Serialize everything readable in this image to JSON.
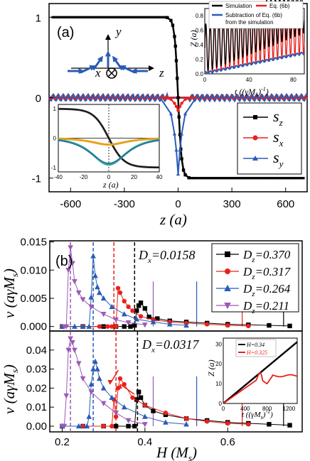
{
  "chart_data": [
    {
      "id": "a",
      "panel_label": "(a)",
      "type": "line",
      "xlabel": "z (a)",
      "ylabel": "",
      "xlim": [
        -720,
        720
      ],
      "ylim": [
        -1.17,
        1.17
      ],
      "xticks": [
        "-600",
        "-300",
        "0",
        "300",
        "600"
      ],
      "yticks": [
        "1",
        "0",
        "-1"
      ],
      "series": [
        {
          "name": "s_z",
          "color": "#000000",
          "marker": "square",
          "x": [
            -700,
            -600,
            -500,
            -400,
            -300,
            -200,
            -100,
            -60,
            -40,
            -30,
            -20,
            -15,
            -10,
            -5,
            0,
            5,
            10,
            15,
            20,
            30,
            40,
            60,
            100,
            200,
            300,
            400,
            500,
            600,
            700
          ],
          "y": [
            1,
            1,
            1,
            1,
            1,
            1,
            0.999,
            0.995,
            0.96,
            0.9,
            0.76,
            0.64,
            0.46,
            0.24,
            0,
            -0.24,
            -0.46,
            -0.64,
            -0.76,
            -0.9,
            -0.96,
            -0.995,
            -0.999,
            -1,
            -1,
            -1,
            -1,
            -1,
            -1
          ]
        },
        {
          "name": "s_x",
          "color": "#e8211c",
          "marker": "circle",
          "x": [
            -700,
            -100,
            -40,
            -20,
            -10,
            0,
            10,
            20,
            40,
            100,
            700
          ],
          "y": [
            0,
            0,
            -0.02,
            -0.07,
            -0.11,
            -0.16,
            -0.11,
            -0.07,
            -0.02,
            0,
            0
          ]
        },
        {
          "name": "s_y",
          "color": "#2a5cb6",
          "marker": "triangle",
          "x": [
            -700,
            -100,
            -40,
            -20,
            -10,
            0,
            10,
            20,
            40,
            100,
            700
          ],
          "y": [
            0,
            0,
            -0.2,
            -0.45,
            -0.65,
            -0.95,
            -0.65,
            -0.45,
            -0.2,
            0,
            0
          ]
        }
      ],
      "inset_profile": {
        "xlabel": "z (a)",
        "xticks": [
          "-40",
          "-20",
          "0",
          "20",
          "40"
        ],
        "yticks": [
          "1",
          "0",
          "-1"
        ],
        "xlim": [
          -40,
          40
        ],
        "ylim": [
          -1.15,
          1.15
        ]
      },
      "inset_time": {
        "xlabel": "t ((γM_S)⁻¹)",
        "ylabel": "Z (a)",
        "xticks": [
          "0",
          "40",
          "80"
        ],
        "yticks": [
          "0.0",
          "0.2",
          "0.4",
          "0.6",
          "0.8"
        ],
        "xlim": [
          0,
          90
        ],
        "ylim": [
          0,
          0.9
        ],
        "legend": [
          "Simulation",
          "Eq. (6b)",
          "Subtraction of Eq. (6b) from the simulation"
        ]
      },
      "axes_sketch": {
        "y_label": "y",
        "x_label": "x",
        "z_label": "z"
      }
    },
    {
      "id": "b",
      "panel_label": "(b)",
      "type": "line",
      "xlabel": "H (M_s)",
      "ylabel_top": "v (aγM_s)",
      "ylabel_bottom": "v (aγM_s)",
      "xlim": [
        0.17,
        0.78
      ],
      "xticks": [
        "0.2",
        "0.4",
        "0.6"
      ],
      "top": {
        "annotation": "D_x=0.0158",
        "ylim": [
          -0.0008,
          0.0152
        ],
        "yticks": [
          "0.000",
          "0.005",
          "0.010",
          "0.015"
        ],
        "series": [
          {
            "name": "D_z=0.370",
            "color": "#000000",
            "marker": "square",
            "x": [
              0.2,
              0.25,
              0.3,
              0.33,
              0.35,
              0.365,
              0.375,
              0.38,
              0.385,
              0.39,
              0.4,
              0.41,
              0.43,
              0.46,
              0.5,
              0.55,
              0.6,
              0.65,
              0.7,
              0.75
            ],
            "y": [
              0,
              0,
              0,
              0,
              0,
              0,
              0.0002,
              0.0028,
              0.0037,
              0.0042,
              0.0032,
              0.0017,
              0.0014,
              0.001,
              0.0008,
              0.0006,
              0.0004,
              0.0003,
              0.0002,
              0.0001
            ]
          },
          {
            "name": "D_z=0.317",
            "color": "#e8211c",
            "marker": "circle",
            "x": [
              0.2,
              0.25,
              0.29,
              0.31,
              0.32,
              0.33,
              0.335,
              0.34,
              0.35,
              0.36,
              0.37,
              0.39,
              0.42,
              0.46,
              0.5,
              0.55,
              0.6,
              0.65
            ],
            "y": [
              0,
              0,
              0,
              0,
              0,
              0,
              0.0068,
              0.006,
              0.0045,
              0.0035,
              0.0028,
              0.0018,
              0.0012,
              0.0008,
              0.0006,
              0.0004,
              0.0002,
              0.0001
            ]
          },
          {
            "name": "D_z=0.264",
            "color": "#2a5cb6",
            "marker": "triangle",
            "x": [
              0.2,
              0.23,
              0.25,
              0.265,
              0.27,
              0.275,
              0.28,
              0.285,
              0.29,
              0.3,
              0.32,
              0.35,
              0.38,
              0.42,
              0.46,
              0.5
            ],
            "y": [
              0,
              0,
              0,
              0,
              0.0052,
              0.0125,
              0.009,
              0.007,
              0.006,
              0.005,
              0.0035,
              0.0022,
              0.0013,
              0.0008,
              0.0004,
              0.0002
            ]
          },
          {
            "name": "D_z=0.211",
            "color": "#9b59b6",
            "marker": "triangle-down",
            "x": [
              0.205,
              0.21,
              0.215,
              0.22,
              0.225,
              0.23,
              0.24,
              0.25,
              0.27,
              0.3,
              0.33,
              0.36,
              0.4
            ],
            "y": [
              0,
              0,
              0.01,
              0.014,
              0.0112,
              0.008,
              0.006,
              0.0048,
              0.0035,
              0.0022,
              0.0012,
              0.0007,
              0.0003
            ]
          }
        ],
        "dashed_lines_x": [
          0.22,
          0.275,
          0.325,
          0.375
        ],
        "solid_lines_x": [
          0.42,
          0.525,
          0.635,
          0.735
        ]
      },
      "bottom": {
        "annotation": "D_x=0.0317",
        "ylim": [
          -0.003,
          0.05
        ],
        "yticks": [
          "0.00",
          "0.01",
          "0.02",
          "0.03",
          "0.04"
        ],
        "series": [
          {
            "name": "D_z=0.370",
            "color": "#000000",
            "marker": "square",
            "x": [
              0.2,
              0.25,
              0.3,
              0.33,
              0.36,
              0.375,
              0.38,
              0.385,
              0.39,
              0.4,
              0.42,
              0.45,
              0.5,
              0.55,
              0.6,
              0.65,
              0.7,
              0.75
            ],
            "y": [
              0,
              0,
              0,
              0,
              0,
              0,
              0.014,
              0.018,
              0.015,
              0.011,
              0.008,
              0.006,
              0.004,
              0.003,
              0.002,
              0.0015,
              0.001,
              0.0005
            ]
          },
          {
            "name": "D_z=0.317",
            "color": "#e8211c",
            "marker": "circle",
            "x": [
              0.2,
              0.25,
              0.3,
              0.32,
              0.325,
              0.33,
              0.335,
              0.34,
              0.35,
              0.37,
              0.4,
              0.45,
              0.5,
              0.55,
              0.6,
              0.65
            ],
            "y": [
              0,
              0,
              0,
              0,
              0.014,
              0.005,
              0.02,
              0.025,
              0.022,
              0.015,
              0.011,
              0.007,
              0.004,
              0.0025,
              0.0015,
              0.001
            ]
          },
          {
            "name": "D_z=0.264",
            "color": "#2a5cb6",
            "marker": "triangle",
            "x": [
              0.2,
              0.24,
              0.26,
              0.265,
              0.27,
              0.275,
              0.28,
              0.285,
              0.29,
              0.3,
              0.32,
              0.35,
              0.4,
              0.45,
              0.5
            ],
            "y": [
              0,
              0,
              0,
              0.005,
              0.022,
              0.03,
              0.034,
              0.03,
              0.025,
              0.02,
              0.015,
              0.01,
              0.005,
              0.002,
              0.001
            ]
          },
          {
            "name": "D_z=0.211",
            "color": "#9b59b6",
            "marker": "triangle-down",
            "x": [
              0.2,
              0.205,
              0.21,
              0.215,
              0.22,
              0.225,
              0.23,
              0.24,
              0.25,
              0.27,
              0.3,
              0.33,
              0.36,
              0.4
            ],
            "y": [
              0,
              0,
              0.016,
              0.04,
              0.046,
              0.044,
              0.04,
              0.033,
              0.025,
              0.018,
              0.012,
              0.007,
              0.003,
              0.001
            ]
          }
        ],
        "dashed_lines_x": [
          0.22,
          0.275,
          0.33,
          0.382
        ],
        "solid_lines_x": [
          0.42,
          0.525,
          0.635,
          0.735
        ],
        "arrows_at_x": [
          0.315,
          0.34
        ]
      },
      "inset_time": {
        "xlabel": "t ((γM_s)⁻¹)",
        "ylabel": "Z (a)",
        "xticks": [
          "0",
          "400",
          "800",
          "1200"
        ],
        "yticks": [
          "0",
          "10",
          "20",
          "30"
        ],
        "xlim": [
          0,
          1350
        ],
        "ylim": [
          0,
          33
        ],
        "legend": [
          "H=0.34",
          "H=0.325"
        ]
      }
    }
  ]
}
